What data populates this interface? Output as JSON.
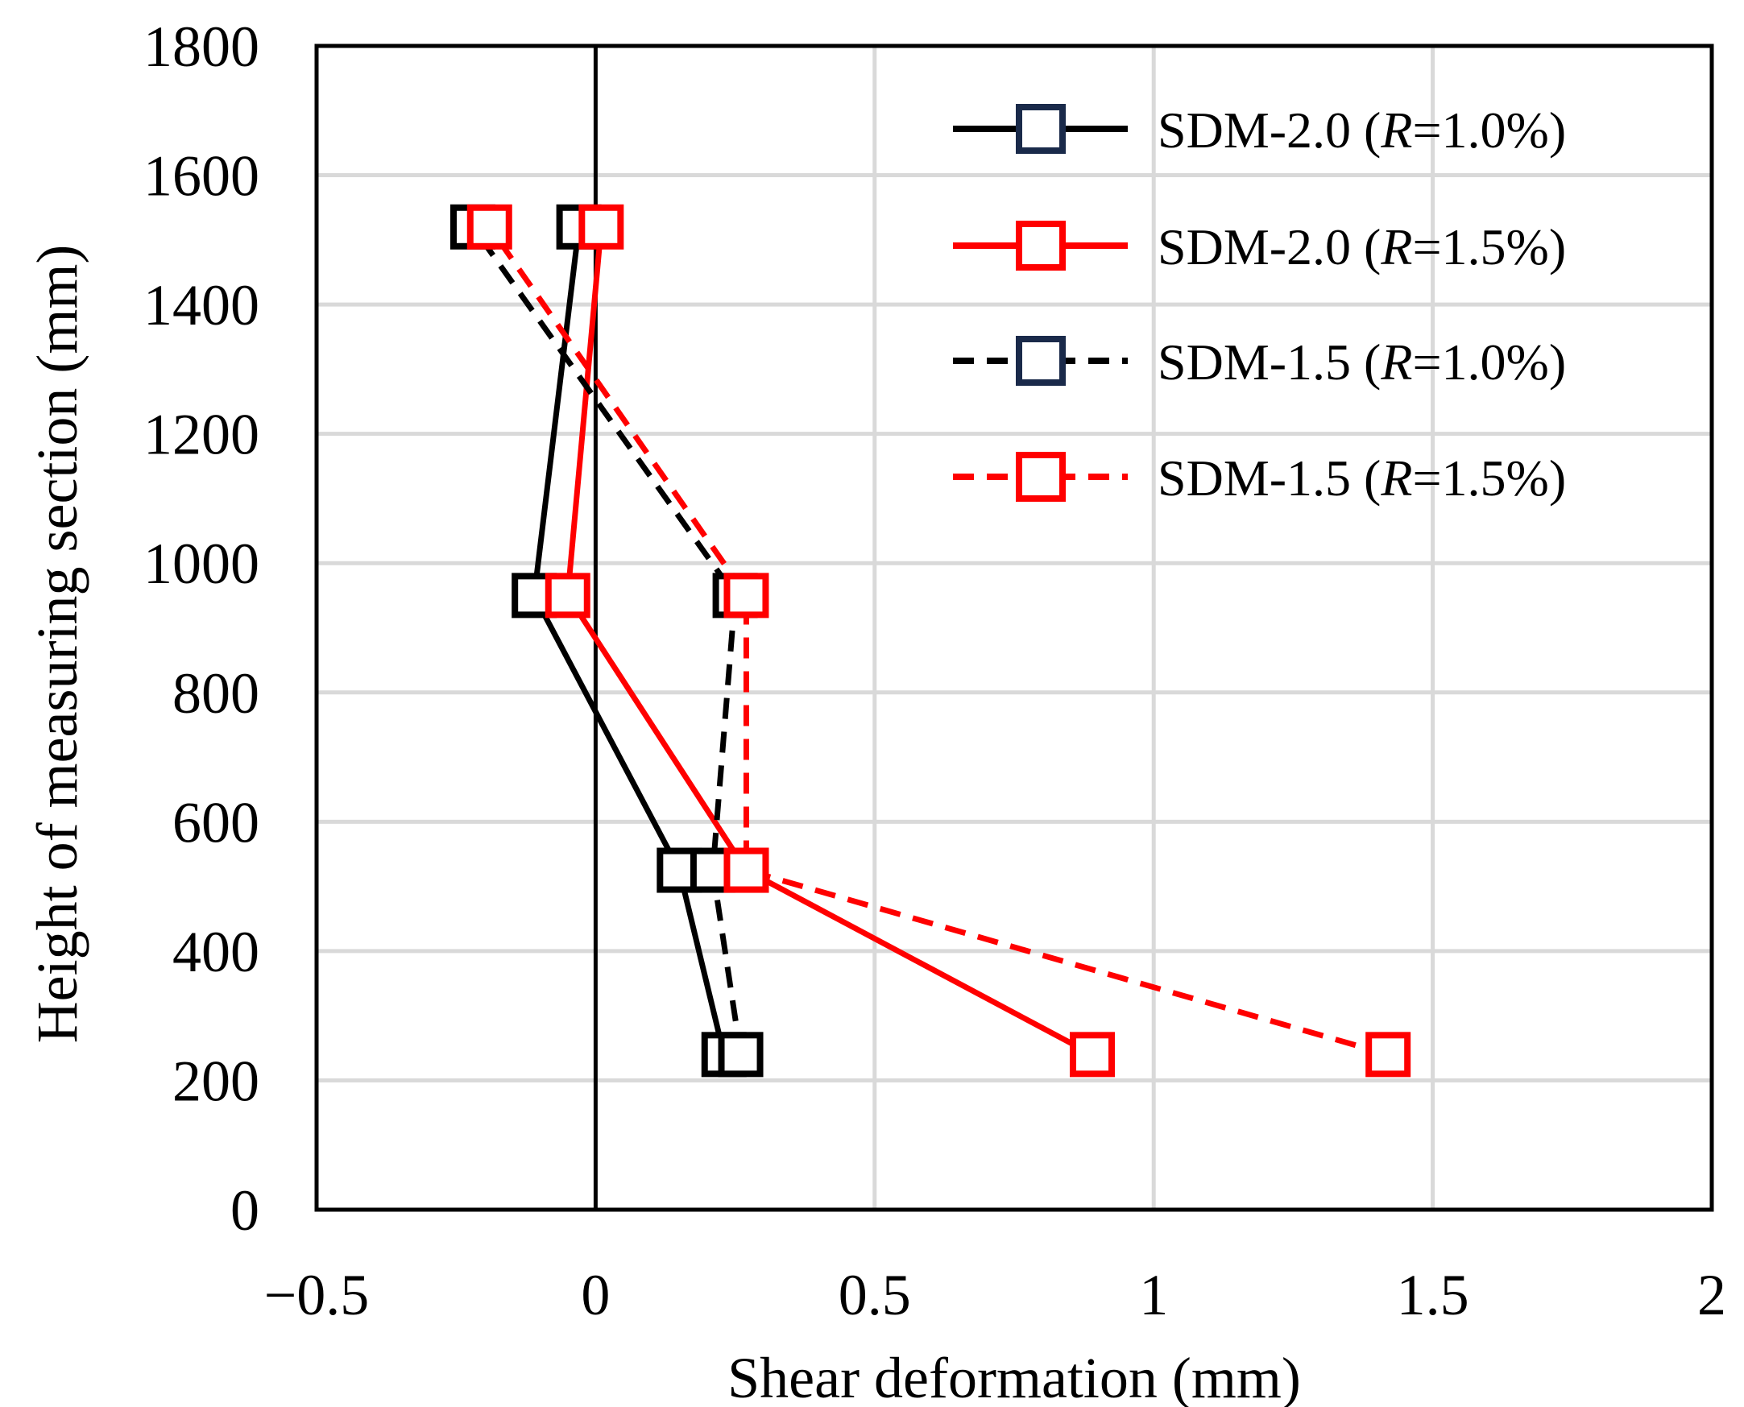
{
  "chart_data": {
    "type": "line",
    "title": "",
    "xlabel": "Shear deformation (mm)",
    "ylabel": "Height of measuring section (mm)",
    "xlim": [
      -0.5,
      2
    ],
    "ylim": [
      0,
      1800
    ],
    "xticks": [
      -0.5,
      0,
      0.5,
      1,
      1.5,
      2
    ],
    "xtick_labels": [
      "−0.5",
      "0",
      "0.5",
      "1",
      "1.5",
      "2"
    ],
    "yticks": [
      0,
      200,
      400,
      600,
      800,
      1000,
      1200,
      1400,
      1600,
      1800
    ],
    "ytick_labels": [
      "0",
      "200",
      "400",
      "600",
      "800",
      "1000",
      "1200",
      "1400",
      "1600",
      "1800"
    ],
    "grid": true,
    "legend_position": "top-right",
    "series": [
      {
        "name": "SDM-2.0 (R=1.0%)",
        "legend_prefix": "SDM-2.0 (",
        "legend_italic": "R",
        "legend_suffix": "=1.0%)",
        "color": "#000000",
        "marker_color": "#1a2a4a",
        "dash": "solid",
        "x": [
          0.23,
          0.15,
          -0.11,
          -0.03
        ],
        "y": [
          240,
          525,
          950,
          1520
        ]
      },
      {
        "name": "SDM-2.0 (R=1.5%)",
        "legend_prefix": "SDM-2.0 (",
        "legend_italic": "R",
        "legend_suffix": "=1.5%)",
        "color": "#ff0000",
        "marker_color": "#ff0000",
        "dash": "solid",
        "x": [
          0.89,
          0.27,
          -0.05,
          0.01
        ],
        "y": [
          240,
          525,
          950,
          1520
        ]
      },
      {
        "name": "SDM-1.5 (R=1.0%)",
        "legend_prefix": "SDM-1.5 (",
        "legend_italic": "R",
        "legend_suffix": "=1.0%)",
        "color": "#000000",
        "marker_color": "#1a2a4a",
        "dash": "dashed",
        "x": [
          0.26,
          0.21,
          0.25,
          -0.22
        ],
        "y": [
          240,
          525,
          950,
          1520
        ]
      },
      {
        "name": "SDM-1.5 (R=1.5%)",
        "legend_prefix": "SDM-1.5 (",
        "legend_italic": "R",
        "legend_suffix": "=1.5%)",
        "color": "#ff0000",
        "marker_color": "#ff0000",
        "dash": "dashed",
        "x": [
          1.42,
          0.27,
          0.27,
          -0.19
        ],
        "y": [
          240,
          525,
          950,
          1520
        ]
      }
    ]
  }
}
